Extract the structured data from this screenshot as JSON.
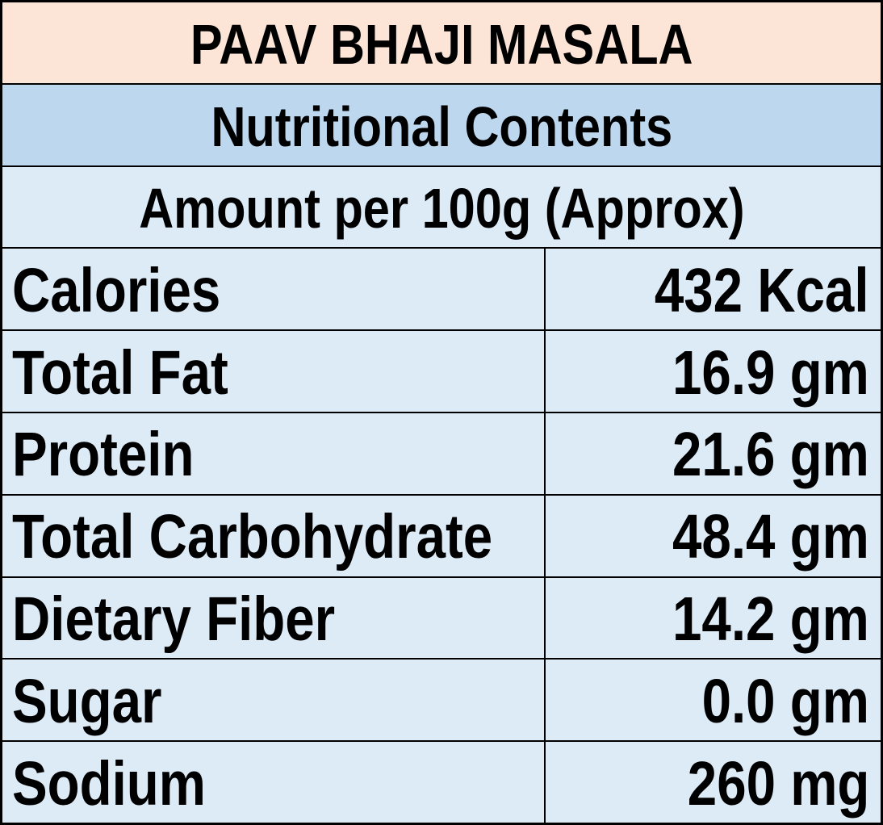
{
  "table": {
    "title": "PAAV BHAJI MASALA",
    "subtitle": "Nutritional Contents",
    "amount_header": "Amount per 100g (Approx)",
    "rows": [
      {
        "label": "Calories",
        "value": "432 Kcal"
      },
      {
        "label": "Total Fat",
        "value": "16.9 gm"
      },
      {
        "label": "Protein",
        "value": "21.6 gm"
      },
      {
        "label": "Total Carbohydrate",
        "value": "48.4 gm"
      },
      {
        "label": "Dietary Fiber",
        "value": "14.2 gm"
      },
      {
        "label": "Sugar",
        "value": "0.0 gm"
      },
      {
        "label": "Sodium",
        "value": "260 mg"
      }
    ],
    "colors": {
      "title_bg": "#FCE4D6",
      "subtitle_bg": "#BDD7EE",
      "body_bg": "#DDEBF7",
      "border": "#000000",
      "text": "#000000"
    }
  }
}
